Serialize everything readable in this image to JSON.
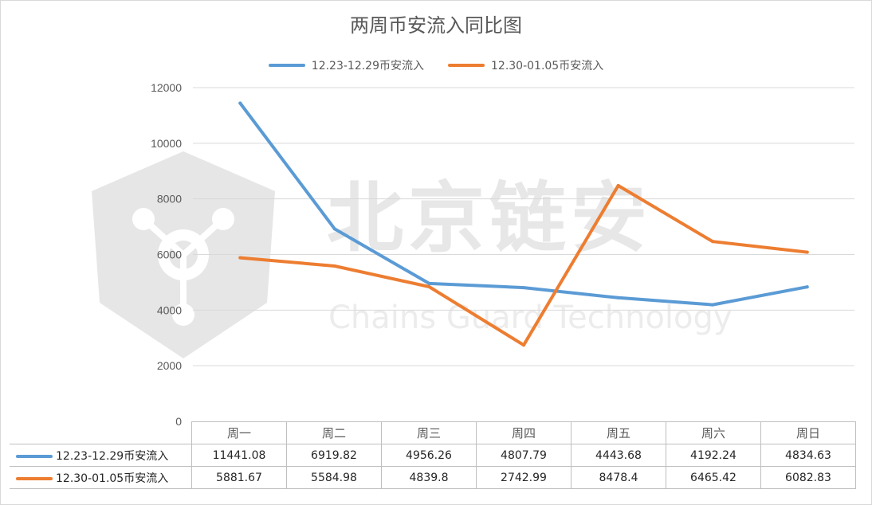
{
  "chart_data": {
    "type": "line",
    "title": "两周币安流入同比图",
    "categories": [
      "周一",
      "周二",
      "周三",
      "周四",
      "周五",
      "周六",
      "周日"
    ],
    "series": [
      {
        "name": "12.23-12.29币安流入",
        "color": "#5b9bd5",
        "values": [
          11441.08,
          6919.82,
          4956.26,
          4807.79,
          4443.68,
          4192.24,
          4834.63
        ]
      },
      {
        "name": "12.30-01.05币安流入",
        "color": "#ed7d31",
        "values": [
          5881.67,
          5584.98,
          4839.8,
          2742.99,
          8478.4,
          6465.42,
          6082.83
        ]
      }
    ],
    "ylim": [
      0,
      12000
    ],
    "yticks": [
      0,
      2000,
      4000,
      6000,
      8000,
      10000,
      12000
    ],
    "grid": true,
    "legend_position": "top",
    "data_table": true
  },
  "table": {
    "rows": [
      [
        "11441.08",
        "6919.82",
        "4956.26",
        "4807.79",
        "4443.68",
        "4192.24",
        "4834.63"
      ],
      [
        "5881.67",
        "5584.98",
        "4839.8",
        "2742.99",
        "8478.4",
        "6465.42",
        "6082.83"
      ]
    ]
  },
  "watermark": {
    "text": "北京链安",
    "subtext": "Chains Guard Technology"
  }
}
